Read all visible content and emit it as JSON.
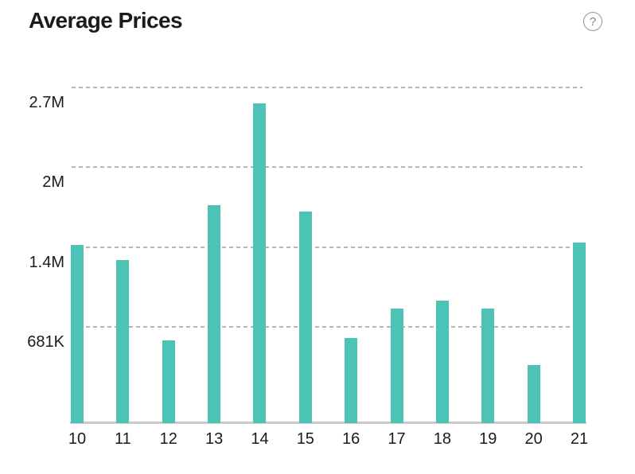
{
  "header": {
    "title": "Average Prices",
    "help_glyph": "?"
  },
  "colors": {
    "background": "#ffffff",
    "bar": "#4cc3b5",
    "gridline": "#b5b5b5",
    "axis_line": "#cbcbcb",
    "text": "#1b1b1d",
    "help_icon": "#949494"
  },
  "chart_data": {
    "type": "bar",
    "title": "Average Prices",
    "categories": [
      "10",
      "11",
      "12",
      "13",
      "14",
      "15",
      "16",
      "17",
      "18",
      "19",
      "20",
      "21"
    ],
    "values": [
      1374000,
      1240000,
      567000,
      1704000,
      2565000,
      1650000,
      587000,
      836000,
      903000,
      836000,
      358000,
      1394000
    ],
    "xlabel": "",
    "ylabel": "",
    "ylim": [
      -127000,
      2835000
    ],
    "gridlines": [
      {
        "label": "2.7M",
        "value": 2700000
      },
      {
        "label": "2M",
        "value": 2027000
      },
      {
        "label": "1.4M",
        "value": 1354000
      },
      {
        "label": "681K",
        "value": 681000
      }
    ],
    "grid": "horizontal-dashed",
    "legend": "none"
  }
}
